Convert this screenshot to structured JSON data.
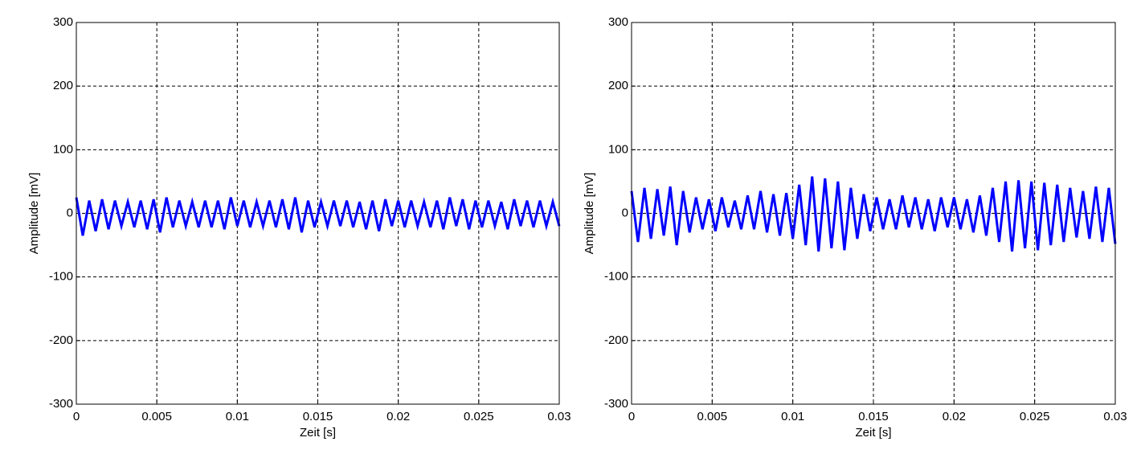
{
  "chart_data": [
    {
      "type": "line",
      "xlabel": "Zeit [s]",
      "ylabel": "Amplitude [mV]",
      "color": "#0000ff",
      "grid": true,
      "xlim": [
        0,
        0.03
      ],
      "xticks": [
        0,
        0.005,
        0.01,
        0.015,
        0.02,
        0.025,
        0.03
      ],
      "ylim": [
        -300,
        300
      ],
      "yticks": [
        -300,
        -200,
        -100,
        0,
        100,
        200,
        300
      ],
      "x": [
        0,
        0.0004,
        0.0008,
        0.0012,
        0.0016,
        0.002,
        0.0024,
        0.0028,
        0.0032,
        0.0036,
        0.004,
        0.0044,
        0.0048,
        0.0052,
        0.0056,
        0.006,
        0.0064,
        0.0068,
        0.0072,
        0.0076,
        0.008,
        0.0084,
        0.0088,
        0.0092,
        0.0096,
        0.01,
        0.0104,
        0.0108,
        0.0112,
        0.0116,
        0.012,
        0.0124,
        0.0128,
        0.0132,
        0.0136,
        0.014,
        0.0144,
        0.0148,
        0.0152,
        0.0156,
        0.016,
        0.0164,
        0.0168,
        0.0172,
        0.0176,
        0.018,
        0.0184,
        0.0188,
        0.0192,
        0.0196,
        0.02,
        0.0204,
        0.0208,
        0.0212,
        0.0216,
        0.022,
        0.0224,
        0.0228,
        0.0232,
        0.0236,
        0.024,
        0.0244,
        0.0248,
        0.0252,
        0.0256,
        0.026,
        0.0264,
        0.0268,
        0.0272,
        0.0276,
        0.028,
        0.0284,
        0.0288,
        0.0292,
        0.0296,
        0.03
      ],
      "values": [
        25,
        -35,
        20,
        -28,
        22,
        -25,
        20,
        -20,
        18,
        -22,
        20,
        -25,
        22,
        -30,
        25,
        -22,
        20,
        -20,
        18,
        -22,
        20,
        -22,
        20,
        -25,
        25,
        -20,
        20,
        -22,
        18,
        -20,
        20,
        -22,
        22,
        -25,
        25,
        -30,
        20,
        -22,
        18,
        -20,
        20,
        -20,
        20,
        -22,
        18,
        -25,
        20,
        -28,
        22,
        -20,
        20,
        -22,
        20,
        -20,
        18,
        -22,
        20,
        -25,
        25,
        -20,
        22,
        -25,
        20,
        -22,
        20,
        -20,
        18,
        -25,
        22,
        -20,
        20,
        -22,
        20,
        -20,
        18,
        -20
      ]
    },
    {
      "type": "line",
      "xlabel": "Zeit [s]",
      "ylabel": "Amplitude [mV]",
      "color": "#0000ff",
      "grid": true,
      "xlim": [
        0,
        0.03
      ],
      "xticks": [
        0,
        0.005,
        0.01,
        0.015,
        0.02,
        0.025,
        0.03
      ],
      "ylim": [
        -300,
        300
      ],
      "yticks": [
        -300,
        -200,
        -100,
        0,
        100,
        200,
        300
      ],
      "x": [
        0,
        0.0004,
        0.0008,
        0.0012,
        0.0016,
        0.002,
        0.0024,
        0.0028,
        0.0032,
        0.0036,
        0.004,
        0.0044,
        0.0048,
        0.0052,
        0.0056,
        0.006,
        0.0064,
        0.0068,
        0.0072,
        0.0076,
        0.008,
        0.0084,
        0.0088,
        0.0092,
        0.0096,
        0.01,
        0.0104,
        0.0108,
        0.0112,
        0.0116,
        0.012,
        0.0124,
        0.0128,
        0.0132,
        0.0136,
        0.014,
        0.0144,
        0.0148,
        0.0152,
        0.0156,
        0.016,
        0.0164,
        0.0168,
        0.0172,
        0.0176,
        0.018,
        0.0184,
        0.0188,
        0.0192,
        0.0196,
        0.02,
        0.0204,
        0.0208,
        0.0212,
        0.0216,
        0.022,
        0.0224,
        0.0228,
        0.0232,
        0.0236,
        0.024,
        0.0244,
        0.0248,
        0.0252,
        0.0256,
        0.026,
        0.0264,
        0.0268,
        0.0272,
        0.0276,
        0.028,
        0.0284,
        0.0288,
        0.0292,
        0.0296,
        0.03
      ],
      "values": [
        35,
        -45,
        40,
        -40,
        38,
        -35,
        42,
        -50,
        35,
        -30,
        25,
        -25,
        22,
        -28,
        25,
        -22,
        20,
        -25,
        28,
        -25,
        35,
        -30,
        30,
        -35,
        32,
        -40,
        45,
        -50,
        58,
        -60,
        55,
        -55,
        50,
        -58,
        40,
        -40,
        30,
        -28,
        25,
        -25,
        22,
        -25,
        28,
        -22,
        25,
        -25,
        22,
        -28,
        25,
        -22,
        25,
        -25,
        22,
        -30,
        28,
        -35,
        40,
        -45,
        50,
        -60,
        52,
        -55,
        50,
        -58,
        48,
        -50,
        45,
        -45,
        40,
        -38,
        35,
        -40,
        42,
        -45,
        40,
        -48
      ]
    }
  ]
}
